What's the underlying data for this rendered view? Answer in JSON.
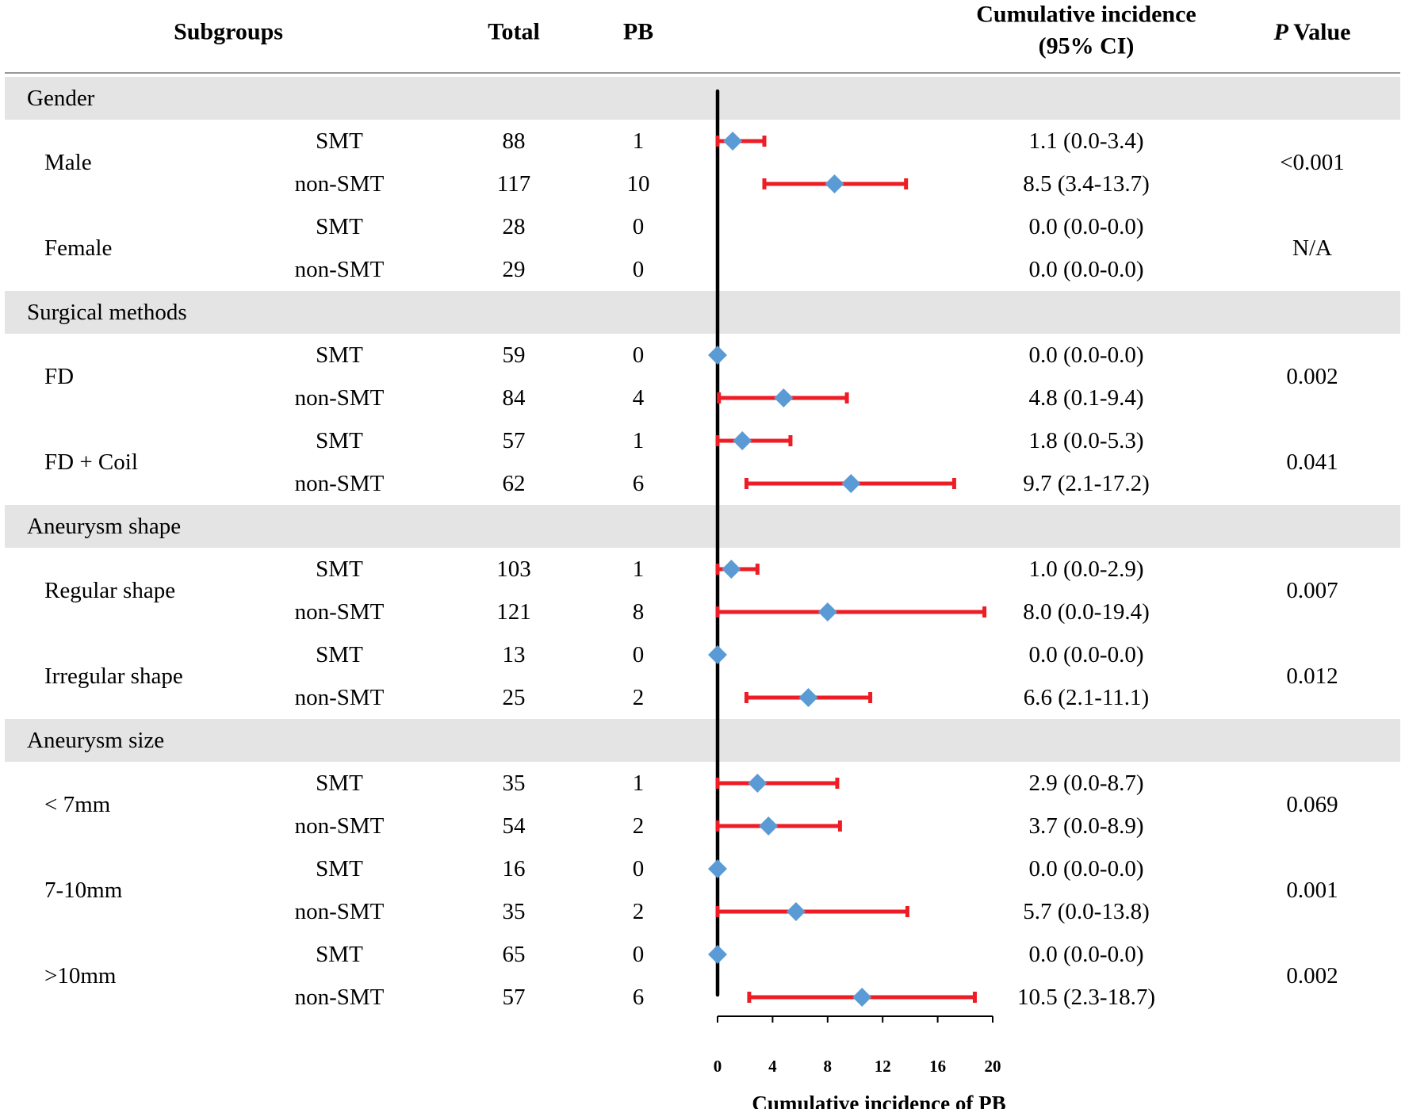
{
  "chart_data": {
    "type": "forest",
    "headers": {
      "subgroups": "Subgroups",
      "total": "Total",
      "pb": "PB",
      "ci_line1": "Cumulative incidence",
      "ci_line2": "(95% CI)",
      "p_italic": "P",
      "p_rest": "Value"
    },
    "xaxis": {
      "label": "Cumulative incidence of PB",
      "ticks": [
        0,
        4,
        8,
        12,
        16,
        20
      ],
      "range": [
        0,
        20
      ]
    },
    "colors": {
      "marker": "#5B9BD5",
      "ci_bar": "#EE1C25",
      "category_band": "#E4E4E4",
      "zero_line": "#000000"
    },
    "categories": [
      {
        "name": "Gender",
        "groups": [
          {
            "name": "Male",
            "p": "<0.001",
            "rows": [
              {
                "arm": "SMT",
                "total": "88",
                "pb": "1",
                "est": 1.1,
                "lo": 0.0,
                "hi": 3.4,
                "ci_text": "1.1 (0.0-3.4)"
              },
              {
                "arm": "non-SMT",
                "total": "117",
                "pb": "10",
                "est": 8.5,
                "lo": 3.4,
                "hi": 13.7,
                "ci_text": "8.5 (3.4-13.7)"
              }
            ]
          },
          {
            "name": "Female",
            "p": "N/A",
            "rows": [
              {
                "arm": "SMT",
                "total": "28",
                "pb": "0",
                "est": null,
                "lo": null,
                "hi": null,
                "ci_text": "0.0 (0.0-0.0)"
              },
              {
                "arm": "non-SMT",
                "total": "29",
                "pb": "0",
                "est": null,
                "lo": null,
                "hi": null,
                "ci_text": "0.0 (0.0-0.0)"
              }
            ]
          }
        ]
      },
      {
        "name": "Surgical methods",
        "groups": [
          {
            "name": "FD",
            "p": "0.002",
            "rows": [
              {
                "arm": "SMT",
                "total": "59",
                "pb": "0",
                "est": 0.0,
                "lo": 0.0,
                "hi": 0.0,
                "ci_text": "0.0 (0.0-0.0)"
              },
              {
                "arm": "non-SMT",
                "total": "84",
                "pb": "4",
                "est": 4.8,
                "lo": 0.1,
                "hi": 9.4,
                "ci_text": "4.8 (0.1-9.4)"
              }
            ]
          },
          {
            "name": "FD + Coil",
            "p": "0.041",
            "rows": [
              {
                "arm": "SMT",
                "total": "57",
                "pb": "1",
                "est": 1.8,
                "lo": 0.0,
                "hi": 5.3,
                "ci_text": "1.8 (0.0-5.3)"
              },
              {
                "arm": "non-SMT",
                "total": "62",
                "pb": "6",
                "est": 9.7,
                "lo": 2.1,
                "hi": 17.2,
                "ci_text": "9.7 (2.1-17.2)"
              }
            ]
          }
        ]
      },
      {
        "name": "Aneurysm shape",
        "groups": [
          {
            "name": "Regular shape",
            "p": "0.007",
            "rows": [
              {
                "arm": "SMT",
                "total": "103",
                "pb": "1",
                "est": 1.0,
                "lo": 0.0,
                "hi": 2.9,
                "ci_text": "1.0 (0.0-2.9)"
              },
              {
                "arm": "non-SMT",
                "total": "121",
                "pb": "8",
                "est": 8.0,
                "lo": 0.0,
                "hi": 19.4,
                "ci_text": "8.0 (0.0-19.4)"
              }
            ]
          },
          {
            "name": "Irregular shape",
            "p": "0.012",
            "rows": [
              {
                "arm": "SMT",
                "total": "13",
                "pb": "0",
                "est": 0.0,
                "lo": 0.0,
                "hi": 0.0,
                "ci_text": "0.0 (0.0-0.0)"
              },
              {
                "arm": "non-SMT",
                "total": "25",
                "pb": "2",
                "est": 6.6,
                "lo": 2.1,
                "hi": 11.1,
                "ci_text": "6.6 (2.1-11.1)"
              }
            ]
          }
        ]
      },
      {
        "name": "Aneurysm size",
        "groups": [
          {
            "name": "< 7mm",
            "p": "0.069",
            "rows": [
              {
                "arm": "SMT",
                "total": "35",
                "pb": "1",
                "est": 2.9,
                "lo": 0.0,
                "hi": 8.7,
                "ci_text": "2.9 (0.0-8.7)"
              },
              {
                "arm": "non-SMT",
                "total": "54",
                "pb": "2",
                "est": 3.7,
                "lo": 0.0,
                "hi": 8.9,
                "ci_text": "3.7 (0.0-8.9)"
              }
            ]
          },
          {
            "name": "7-10mm",
            "p": "0.001",
            "rows": [
              {
                "arm": "SMT",
                "total": "16",
                "pb": "0",
                "est": 0.0,
                "lo": 0.0,
                "hi": 0.0,
                "ci_text": "0.0 (0.0-0.0)"
              },
              {
                "arm": "non-SMT",
                "total": "35",
                "pb": "2",
                "est": 5.7,
                "lo": 0.0,
                "hi": 13.8,
                "ci_text": "5.7 (0.0-13.8)"
              }
            ]
          },
          {
            "name": ">10mm",
            "p": "0.002",
            "rows": [
              {
                "arm": "SMT",
                "total": "65",
                "pb": "0",
                "est": 0.0,
                "lo": 0.0,
                "hi": 0.0,
                "ci_text": "0.0 (0.0-0.0)"
              },
              {
                "arm": "non-SMT",
                "total": "57",
                "pb": "6",
                "est": 10.5,
                "lo": 2.3,
                "hi": 18.7,
                "ci_text": "10.5 (2.3-18.7)"
              }
            ]
          }
        ]
      }
    ]
  }
}
